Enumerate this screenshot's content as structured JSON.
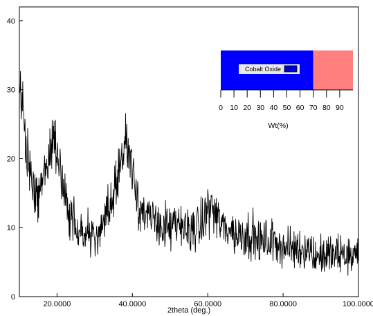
{
  "chart_data": {
    "type": "line",
    "title": "",
    "xlabel": "2theta (deg.)",
    "ylabel": "",
    "xlim": [
      10,
      100
    ],
    "ylim": [
      0,
      42
    ],
    "x_ticks": [
      20,
      40,
      60,
      80,
      100
    ],
    "x_tick_labels": [
      "20.0000",
      "40.0000",
      "60.0000",
      "80.0000",
      "100.0000"
    ],
    "y_ticks": [
      0,
      10,
      20,
      30,
      40
    ],
    "y_tick_labels": [
      "0",
      "10",
      "20",
      "30",
      "40"
    ],
    "grid": false,
    "line_color": "#000000",
    "series": [
      {
        "x": [
          10,
          11,
          12,
          13,
          14,
          15,
          16,
          17,
          18,
          19,
          20,
          21,
          22,
          23,
          24,
          25,
          26,
          27,
          28,
          29,
          30,
          31,
          32,
          33,
          34,
          35,
          36,
          37,
          38,
          39,
          40,
          41,
          42,
          43,
          44,
          45,
          46,
          47,
          48,
          49,
          50,
          51,
          52,
          53,
          54,
          55,
          56,
          57,
          58,
          59,
          60,
          61,
          62,
          63,
          64,
          65,
          66,
          67,
          68,
          69,
          70,
          71,
          72,
          73,
          74,
          75,
          76,
          77,
          78,
          79,
          80,
          81,
          82,
          83,
          84,
          85,
          86,
          87,
          88,
          89,
          90,
          91,
          92,
          93,
          94,
          95,
          96,
          97,
          98,
          99,
          100
        ],
        "y": [
          31,
          26,
          21,
          17,
          15,
          15,
          16,
          18,
          21,
          23,
          22,
          18,
          14,
          12,
          11,
          11,
          10,
          9,
          9,
          9,
          8,
          9,
          10,
          11,
          13,
          15,
          18,
          20,
          22,
          22,
          19,
          16,
          13,
          12,
          11,
          11,
          11,
          11,
          10,
          10,
          10,
          10,
          10,
          10,
          10,
          10,
          10,
          10,
          10,
          11,
          13,
          13,
          12,
          11,
          10,
          10,
          10,
          9,
          9,
          9,
          9,
          9,
          9,
          8,
          8,
          8,
          8,
          8,
          8,
          8,
          7,
          7,
          7,
          7,
          7,
          7,
          7,
          7,
          6,
          6,
          6,
          6,
          6,
          6,
          6,
          6,
          6,
          6,
          6,
          6,
          6
        ]
      }
    ]
  },
  "inset": {
    "legend_label": "Cobalt Oxide",
    "xlabel": "Wt(%)",
    "tick_labels": [
      "0",
      "10",
      "20",
      "30",
      "40",
      "50",
      "60",
      "70",
      "80",
      "90"
    ],
    "cobalt_oxide_wt_percent": 70,
    "cobalt_oxide_color": "#0000ff",
    "remainder_color": "#ff7f7f",
    "legend_swatch_color": "#0000cc"
  }
}
